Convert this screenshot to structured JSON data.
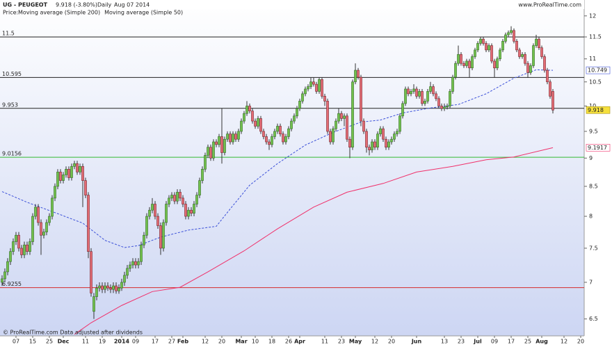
{
  "chart_data": {
    "type": "candlestick",
    "title": "UG - PEUGEOT",
    "quote": "9.918 (-3.80%)",
    "period": "Daily",
    "date": "Aug 07 2014",
    "source": "www.ProRealTime.com",
    "footnote": "© ProRealTime.com  Data adjusted after dividends",
    "legend_label": "Price:",
    "log_scale": true,
    "ylim": [
      6.29,
      12.15
    ],
    "yticks": [
      12,
      11.5,
      11,
      10.5,
      10,
      9.5,
      9,
      8.5,
      8,
      7.5,
      7,
      6.5
    ],
    "up_color": "#72c04c",
    "down_color": "#e36c74",
    "categories": [
      null,
      null,
      null,
      null,
      null,
      "07",
      null,
      null,
      null,
      null,
      null,
      "15",
      null,
      null,
      null,
      null,
      null,
      "25",
      null,
      null,
      null,
      null,
      "Dec",
      null,
      null,
      null,
      null,
      null,
      null,
      null,
      "11",
      null,
      null,
      null,
      null,
      null,
      "19",
      null,
      null,
      null,
      null,
      null,
      null,
      "2014",
      null,
      null,
      null,
      null,
      "09",
      null,
      null,
      null,
      null,
      null,
      null,
      "17",
      null,
      null,
      null,
      null,
      null,
      "27",
      null,
      null,
      null,
      "Feb",
      null,
      null,
      null,
      null,
      null,
      null,
      null,
      "12",
      null,
      null,
      null,
      null,
      null,
      "20",
      null,
      null,
      null,
      null,
      null,
      null,
      "Mar",
      null,
      null,
      null,
      null,
      "10",
      null,
      null,
      null,
      null,
      null,
      "18",
      null,
      null,
      null,
      null,
      null,
      "26",
      null,
      null,
      null,
      "Apr",
      null,
      null,
      null,
      null,
      null,
      null,
      null,
      null,
      "11",
      null,
      null,
      null,
      null,
      null,
      "23",
      null,
      null,
      null,
      null,
      "May",
      null,
      null,
      null,
      null,
      null,
      null,
      "12",
      null,
      null,
      null,
      null,
      null,
      "20",
      null,
      null,
      null,
      null,
      null,
      null,
      null,
      null,
      "Jun",
      null,
      null,
      null,
      null,
      null,
      null,
      null,
      null,
      null,
      "13",
      null,
      null,
      null,
      null,
      null,
      "23",
      null,
      null,
      null,
      null,
      null,
      "Jul",
      null,
      null,
      null,
      null,
      null,
      "09",
      null,
      null,
      null,
      null,
      null,
      "17",
      null,
      null,
      null,
      null,
      null,
      "25",
      null,
      null,
      null,
      null,
      "Aug",
      null,
      null,
      null,
      null,
      null,
      null,
      null,
      "12",
      null,
      null,
      null,
      null,
      null,
      "20",
      null
    ],
    "open": [
      7.0,
      7.05,
      7.15,
      7.3,
      7.45,
      7.6,
      7.7,
      7.5,
      7.4,
      7.55,
      7.45,
      7.6,
      8.0,
      8.15,
      7.9,
      7.7,
      7.75,
      7.9,
      8.0,
      8.3,
      8.5,
      8.75,
      8.6,
      8.7,
      8.8,
      8.65,
      8.85,
      8.9,
      8.75,
      8.85,
      8.6,
      8.35,
      7.45,
      6.6,
      6.8,
      6.92,
      6.95,
      6.9,
      6.95,
      6.92,
      6.9,
      6.95,
      6.88,
      6.92,
      7.0,
      7.1,
      7.2,
      7.25,
      7.3,
      7.25,
      7.3,
      7.55,
      7.7,
      8.0,
      8.1,
      8.2,
      8.0,
      7.85,
      7.5,
      7.9,
      8.2,
      8.3,
      8.35,
      8.25,
      8.4,
      8.3,
      8.2,
      8.0,
      8.1,
      8.05,
      8.2,
      8.35,
      8.6,
      8.8,
      9.05,
      9.2,
      9.0,
      9.3,
      9.25,
      9.4,
      9.1,
      9.35,
      9.45,
      9.3,
      9.45,
      9.35,
      9.5,
      9.7,
      9.85,
      10.0,
      9.9,
      9.7,
      9.6,
      9.75,
      9.5,
      9.4,
      9.3,
      9.25,
      9.4,
      9.5,
      9.6,
      9.45,
      9.3,
      9.4,
      9.55,
      9.7,
      9.8,
      9.95,
      10.1,
      10.25,
      10.35,
      10.4,
      10.5,
      10.45,
      10.3,
      10.55,
      10.2,
      10.1,
      9.5,
      9.3,
      9.55,
      9.7,
      9.85,
      9.75,
      9.8,
      9.35,
      9.2,
      10.5,
      10.75,
      10.6,
      9.7,
      9.5,
      9.2,
      9.15,
      9.3,
      9.2,
      9.45,
      9.55,
      9.35,
      9.2,
      9.3,
      9.35,
      9.45,
      9.5,
      9.8,
      10.05,
      10.35,
      10.25,
      10.3,
      10.35,
      10.2,
      10.3,
      10.05,
      10.1,
      10.3,
      10.4,
      10.25,
      10.15,
      10.0,
      9.95,
      9.98,
      10.0,
      10.3,
      10.6,
      10.9,
      11.1,
      10.9,
      10.85,
      10.95,
      10.8,
      11.05,
      11.2,
      11.35,
      11.45,
      11.35,
      11.2,
      11.3,
      10.95,
      10.8,
      11.0,
      11.2,
      11.4,
      11.55,
      11.6,
      11.65,
      11.4,
      11.2,
      11.05,
      11.1,
      10.9,
      10.7,
      10.85,
      11.3,
      11.45,
      11.25,
      11.05,
      10.75,
      10.5,
      10.3,
      null,
      null,
      null,
      null,
      null,
      null,
      null,
      null,
      null,
      null,
      null
    ],
    "high": [
      7.1,
      7.2,
      7.35,
      7.5,
      7.65,
      7.75,
      7.75,
      7.55,
      7.6,
      7.6,
      7.65,
      8.05,
      8.2,
      8.2,
      7.95,
      7.8,
      7.95,
      8.05,
      8.35,
      8.55,
      8.8,
      8.8,
      8.75,
      8.85,
      8.85,
      8.9,
      8.95,
      8.95,
      8.9,
      8.9,
      8.65,
      8.4,
      7.5,
      6.85,
      6.97,
      7.0,
      7.0,
      7.0,
      7.0,
      6.97,
      7.0,
      7.0,
      6.97,
      7.05,
      7.15,
      7.25,
      7.3,
      7.35,
      7.35,
      7.35,
      7.6,
      7.75,
      8.05,
      8.15,
      8.3,
      8.25,
      8.05,
      7.9,
      7.95,
      8.25,
      8.35,
      8.4,
      8.4,
      8.45,
      8.45,
      8.35,
      8.25,
      8.15,
      8.15,
      8.25,
      8.4,
      8.65,
      8.85,
      9.1,
      9.25,
      9.25,
      9.35,
      9.35,
      9.45,
      9.95,
      9.4,
      9.5,
      9.5,
      9.5,
      9.5,
      9.55,
      9.75,
      9.9,
      10.1,
      10.05,
      9.95,
      9.75,
      9.8,
      9.8,
      9.55,
      9.45,
      9.35,
      9.45,
      9.55,
      9.65,
      9.65,
      9.5,
      9.45,
      9.6,
      9.75,
      9.85,
      10.0,
      10.15,
      10.3,
      10.4,
      10.45,
      10.6,
      10.6,
      10.5,
      10.6,
      10.6,
      10.25,
      10.15,
      9.55,
      9.6,
      9.75,
      9.95,
      9.9,
      9.85,
      9.85,
      9.4,
      10.55,
      10.9,
      10.8,
      10.65,
      9.75,
      9.55,
      9.25,
      9.35,
      9.35,
      9.5,
      9.6,
      9.6,
      9.4,
      9.35,
      9.4,
      9.5,
      9.55,
      9.85,
      10.1,
      10.4,
      10.4,
      10.35,
      10.45,
      10.4,
      10.35,
      10.35,
      10.15,
      10.35,
      10.5,
      10.45,
      10.3,
      10.2,
      10.05,
      10.05,
      10.05,
      10.35,
      10.65,
      10.95,
      11.3,
      11.15,
      10.95,
      11.0,
      11.0,
      11.1,
      11.25,
      11.4,
      11.5,
      11.5,
      11.4,
      11.35,
      11.35,
      11.0,
      11.05,
      11.25,
      11.45,
      11.6,
      11.65,
      11.75,
      11.7,
      11.45,
      11.25,
      11.15,
      11.15,
      10.95,
      10.9,
      11.35,
      11.55,
      11.5,
      11.3,
      11.1,
      10.8,
      10.55,
      10.35,
      null,
      null,
      null,
      null,
      null,
      null,
      null,
      null,
      null,
      null,
      null
    ],
    "low": [
      6.95,
      7.0,
      7.1,
      7.25,
      7.4,
      7.55,
      7.45,
      7.35,
      7.35,
      7.4,
      7.4,
      7.55,
      7.95,
      7.85,
      7.4,
      7.65,
      7.7,
      7.85,
      7.95,
      8.25,
      8.45,
      8.55,
      8.55,
      8.65,
      8.6,
      8.6,
      8.8,
      8.7,
      8.7,
      8.15,
      8.3,
      7.35,
      6.8,
      6.5,
      6.75,
      6.87,
      6.85,
      6.85,
      6.88,
      6.85,
      6.85,
      6.84,
      6.84,
      6.88,
      6.95,
      7.05,
      7.15,
      7.2,
      7.2,
      7.2,
      7.25,
      7.5,
      7.65,
      7.95,
      8.05,
      7.95,
      7.8,
      7.4,
      7.45,
      7.85,
      8.15,
      8.25,
      8.2,
      8.2,
      8.25,
      8.15,
      7.95,
      7.95,
      8.0,
      8.0,
      8.15,
      8.3,
      8.55,
      8.75,
      9.0,
      8.95,
      8.95,
      9.2,
      9.2,
      8.9,
      9.05,
      9.3,
      9.25,
      9.25,
      9.3,
      9.3,
      9.45,
      9.65,
      9.8,
      9.85,
      9.65,
      9.55,
      9.55,
      9.45,
      9.35,
      9.25,
      9.15,
      9.2,
      9.35,
      9.45,
      9.4,
      9.25,
      9.25,
      9.35,
      9.5,
      9.65,
      9.75,
      9.9,
      10.05,
      10.2,
      10.3,
      10.35,
      10.4,
      10.25,
      10.25,
      10.15,
      10.0,
      9.45,
      9.25,
      9.25,
      9.5,
      9.65,
      9.7,
      9.6,
      9.3,
      9.0,
      9.15,
      10.45,
      10.55,
      9.6,
      9.45,
      9.1,
      9.05,
      9.1,
      9.15,
      9.15,
      9.4,
      9.3,
      9.15,
      9.15,
      9.25,
      9.3,
      9.4,
      9.45,
      9.75,
      10.0,
      10.2,
      10.2,
      10.25,
      10.15,
      10.15,
      10.0,
      10.0,
      10.05,
      10.25,
      10.2,
      10.1,
      9.95,
      9.9,
      9.9,
      9.93,
      9.95,
      10.25,
      10.55,
      10.85,
      10.85,
      10.8,
      10.8,
      10.6,
      10.75,
      11.0,
      11.15,
      11.3,
      11.3,
      11.15,
      11.15,
      10.9,
      10.6,
      10.75,
      10.95,
      11.15,
      11.35,
      11.5,
      11.55,
      11.35,
      11.15,
      11.0,
      11.0,
      10.85,
      10.6,
      10.65,
      10.8,
      11.25,
      11.2,
      11.0,
      10.7,
      10.45,
      10.15,
      9.85,
      null,
      null,
      null,
      null,
      null,
      null,
      null,
      null,
      null,
      null,
      null
    ],
    "close": [
      7.05,
      7.15,
      7.3,
      7.45,
      7.6,
      7.7,
      7.5,
      7.4,
      7.55,
      7.45,
      7.6,
      8.0,
      8.15,
      7.9,
      7.7,
      7.75,
      7.9,
      8.0,
      8.3,
      8.5,
      8.75,
      8.6,
      8.7,
      8.8,
      8.65,
      8.85,
      8.9,
      8.75,
      8.85,
      8.6,
      8.35,
      7.45,
      6.85,
      6.8,
      6.92,
      6.95,
      6.9,
      6.95,
      6.92,
      6.9,
      6.95,
      6.88,
      6.92,
      7.0,
      7.1,
      7.2,
      7.25,
      7.3,
      7.25,
      7.3,
      7.55,
      7.7,
      8.0,
      8.1,
      8.2,
      8.0,
      7.85,
      7.5,
      7.9,
      8.2,
      8.3,
      8.35,
      8.25,
      8.4,
      8.3,
      8.2,
      8.0,
      8.1,
      8.05,
      8.2,
      8.35,
      8.6,
      8.8,
      9.05,
      9.2,
      9.0,
      9.3,
      9.25,
      9.4,
      9.1,
      9.35,
      9.45,
      9.3,
      9.45,
      9.35,
      9.5,
      9.7,
      9.85,
      10.0,
      9.9,
      9.7,
      9.6,
      9.75,
      9.5,
      9.4,
      9.3,
      9.25,
      9.4,
      9.5,
      9.6,
      9.45,
      9.3,
      9.4,
      9.55,
      9.7,
      9.8,
      9.95,
      10.1,
      10.25,
      10.35,
      10.4,
      10.5,
      10.45,
      10.3,
      10.55,
      10.2,
      10.1,
      9.5,
      9.3,
      9.55,
      9.7,
      9.85,
      9.75,
      9.8,
      9.35,
      9.2,
      10.5,
      10.75,
      10.6,
      9.7,
      9.5,
      9.2,
      9.15,
      9.3,
      9.2,
      9.45,
      9.55,
      9.35,
      9.2,
      9.3,
      9.35,
      9.45,
      9.5,
      9.8,
      10.05,
      10.35,
      10.25,
      10.3,
      10.35,
      10.2,
      10.3,
      10.05,
      10.1,
      10.3,
      10.4,
      10.25,
      10.15,
      10.0,
      9.95,
      9.98,
      10.0,
      10.3,
      10.6,
      10.9,
      11.1,
      10.9,
      10.85,
      10.95,
      10.8,
      11.05,
      11.2,
      11.35,
      11.45,
      11.35,
      11.2,
      11.3,
      10.95,
      10.8,
      11.0,
      11.2,
      11.4,
      11.55,
      11.6,
      11.65,
      11.4,
      11.2,
      11.05,
      11.1,
      10.9,
      10.7,
      10.85,
      11.3,
      11.45,
      11.25,
      11.05,
      10.75,
      10.5,
      10.2,
      9.918,
      null,
      null,
      null,
      null,
      null,
      null,
      null,
      null,
      null,
      null,
      null
    ],
    "series": [
      {
        "name": "Moving average (Simple 200)",
        "color": "#f0306a",
        "dashed": false,
        "x": [
          26,
          32,
          43,
          54,
          64,
          74,
          87,
          99,
          112,
          124,
          137,
          149,
          162,
          174,
          184,
          198
        ],
        "values": [
          6.3,
          6.45,
          6.68,
          6.87,
          6.93,
          7.15,
          7.46,
          7.8,
          8.15,
          8.4,
          8.55,
          8.75,
          8.85,
          8.97,
          9.02,
          9.1917
        ]
      },
      {
        "name": "Moving average (Simple 50)",
        "color": "#3a4fd8",
        "dashed": true,
        "x": [
          0,
          9,
          19,
          29,
          37,
          44,
          49,
          57,
          67,
          77,
          82,
          89,
          99,
          109,
          119,
          129,
          136,
          144,
          154,
          164,
          174,
          184,
          192,
          198
        ],
        "values": [
          8.41,
          8.23,
          8.06,
          7.89,
          7.62,
          7.51,
          7.54,
          7.67,
          7.78,
          7.84,
          8.12,
          8.52,
          8.9,
          9.24,
          9.48,
          9.68,
          9.72,
          9.86,
          9.96,
          10.03,
          10.25,
          10.58,
          10.76,
          10.749
        ]
      }
    ],
    "hlines": [
      {
        "value": 11.5,
        "color": "#222222"
      },
      {
        "value": 10.595,
        "color": "#222222"
      },
      {
        "value": 9.953,
        "color": "#222222"
      },
      {
        "value": 9.0156,
        "color": "#33b833"
      },
      {
        "value": 6.9255,
        "color": "#d62b2b"
      }
    ]
  }
}
